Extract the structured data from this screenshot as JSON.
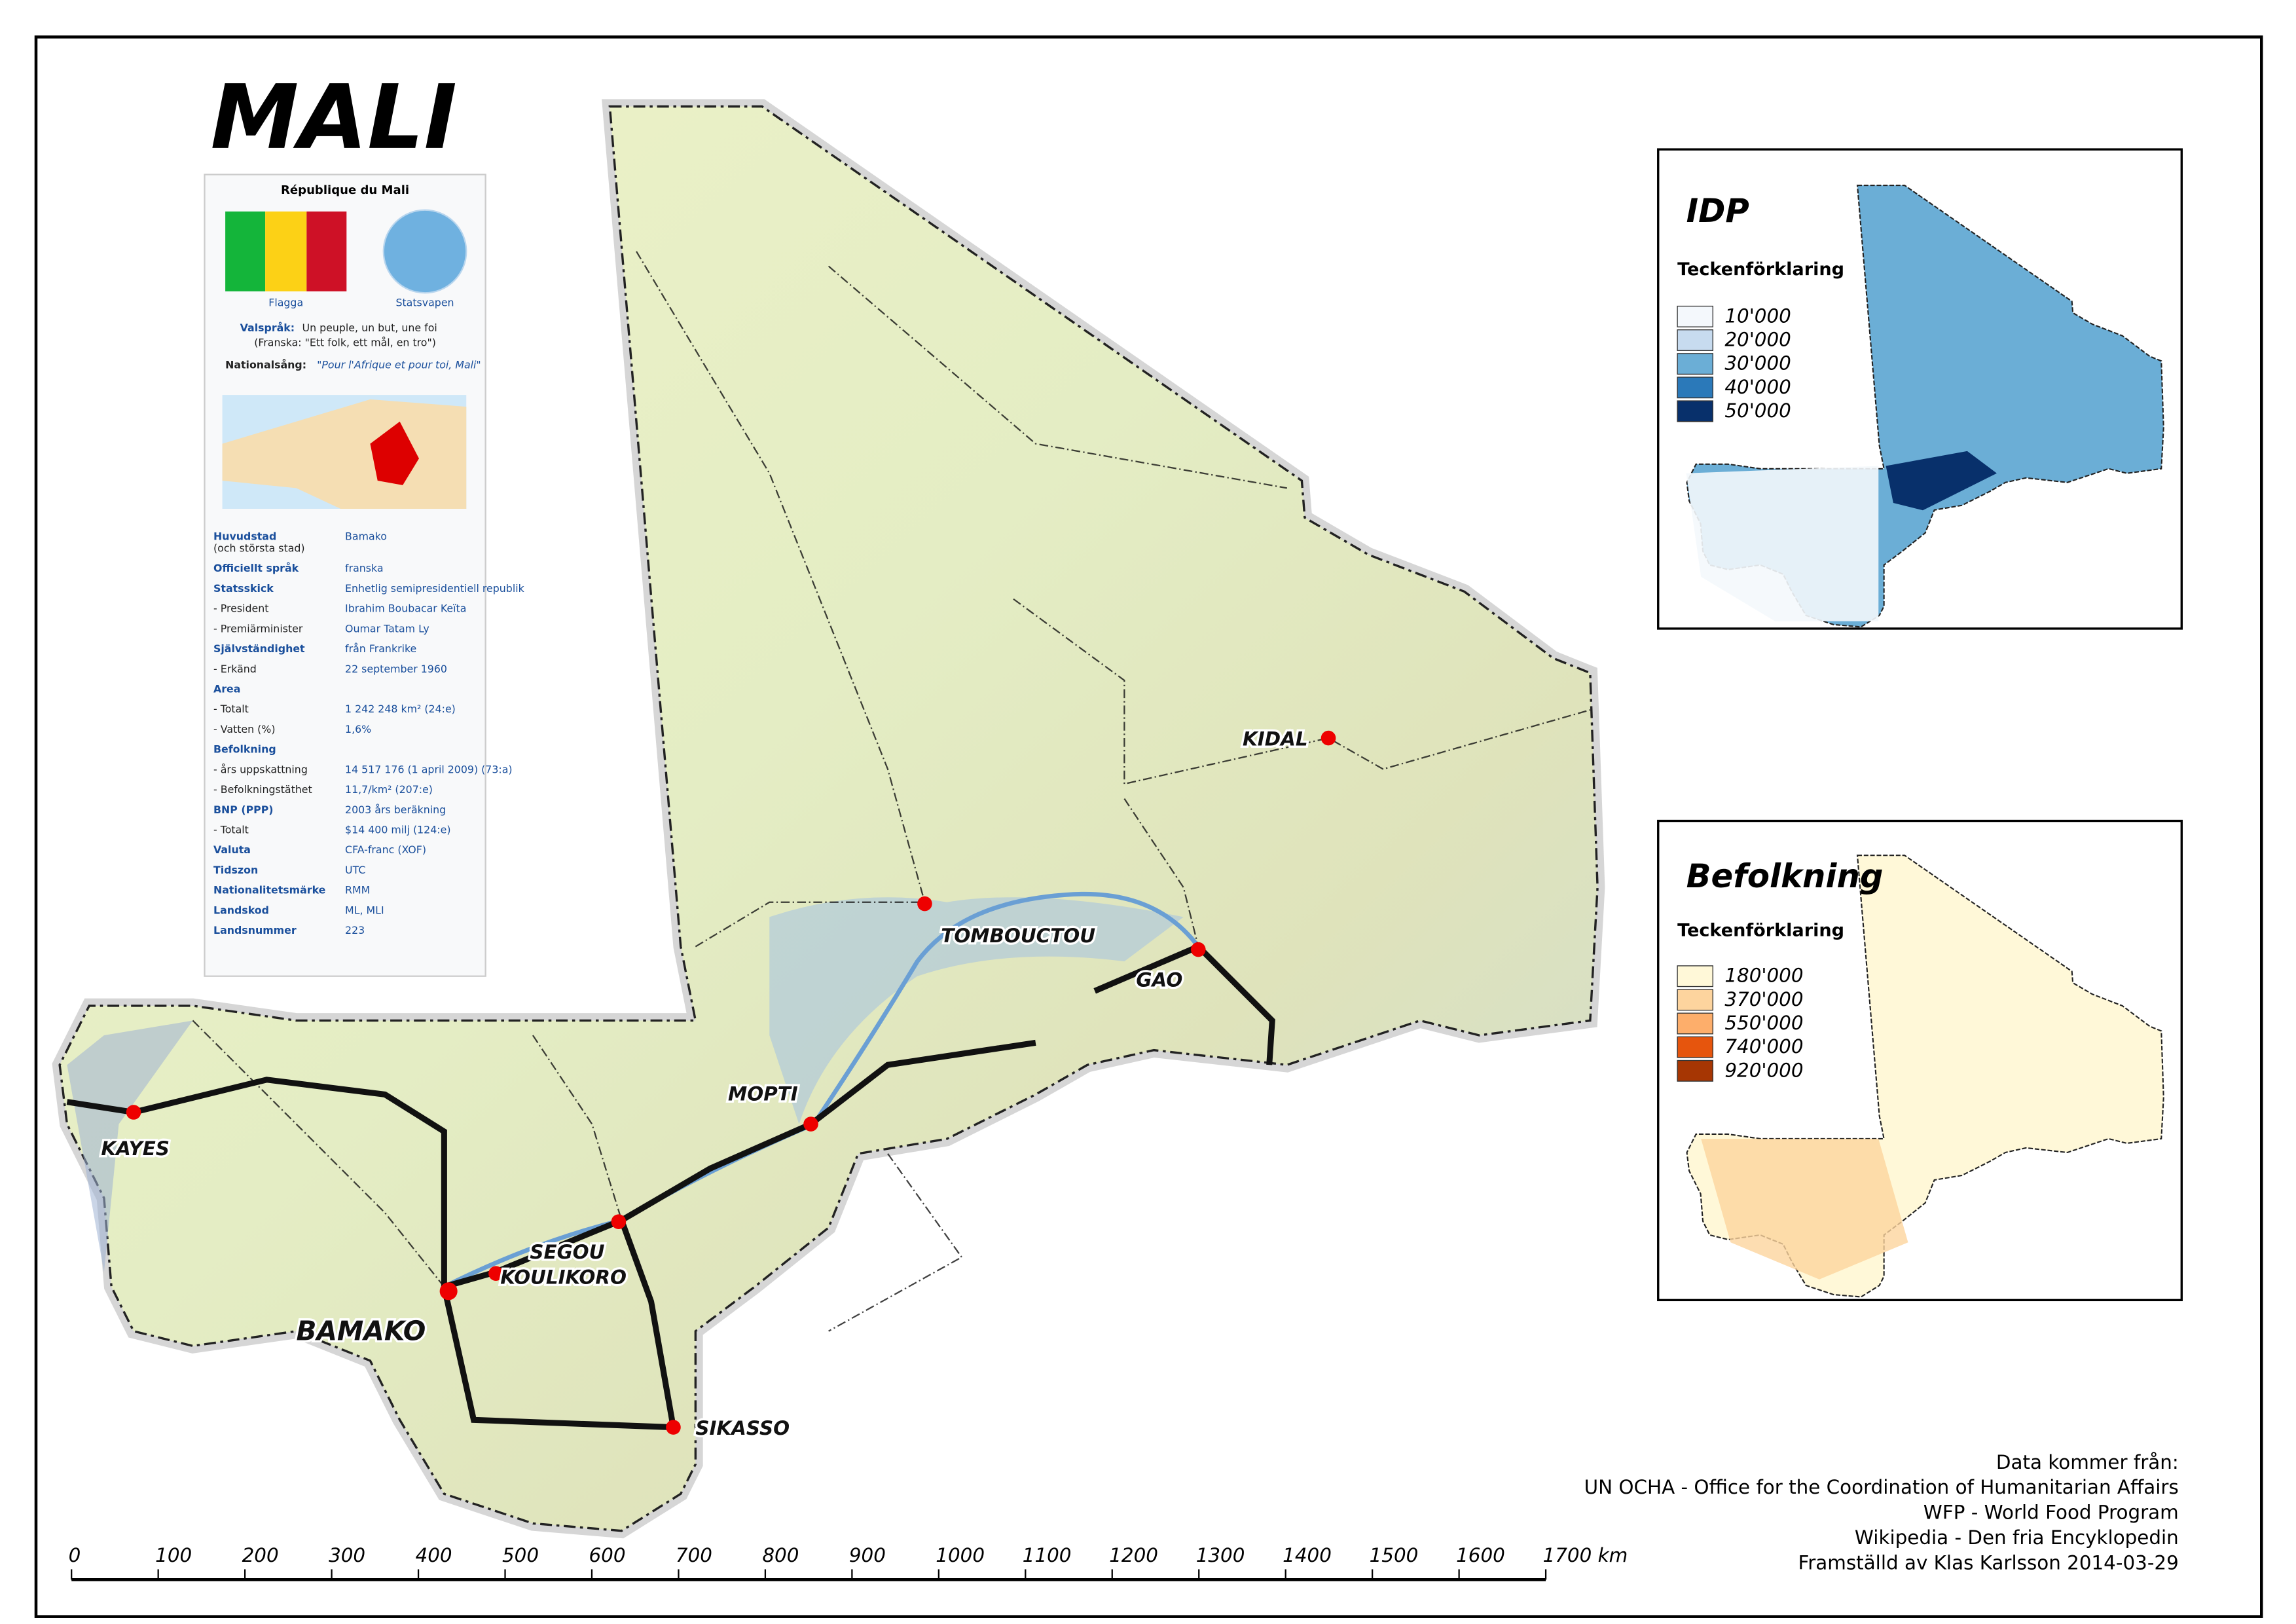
{
  "title": "MALI",
  "infobox": {
    "title": "République du Mali",
    "flag_caption": "Flagga",
    "coat_caption": "Statsvapen",
    "motto_label": "Valspråk:",
    "motto_text": "Un peuple, un but, une foi",
    "motto_translation": "(Franska: \"Ett folk, ett mål, en tro\")",
    "anthem_label": "Nationalsång:",
    "anthem_text": "\"Pour l'Afrique et pour toi, Mali\"",
    "rows": [
      [
        "Huvudstad",
        "Bamako"
      ],
      [
        "(och största stad)",
        ""
      ],
      [
        "Officiellt språk",
        "franska"
      ],
      [
        "Statsskick",
        "Enhetlig semipresidentiell republik"
      ],
      [
        "- President",
        "Ibrahim Boubacar Keïta"
      ],
      [
        "- Premiärminister",
        "Oumar Tatam Ly"
      ],
      [
        "Självständighet",
        "från Frankrike"
      ],
      [
        "- Erkänd",
        "22 september 1960"
      ],
      [
        "Area",
        ""
      ],
      [
        "- Totalt",
        "1 242 248 km² (24:e)"
      ],
      [
        "- Vatten (%)",
        "1,6%"
      ],
      [
        "Befolkning",
        ""
      ],
      [
        "- års uppskattning",
        "14 517 176 (1 april 2009) (73:a)"
      ],
      [
        "- Befolkningstäthet",
        "11,7/km² (207:e)"
      ],
      [
        "BNP (PPP)",
        "2003 års beräkning"
      ],
      [
        "- Totalt",
        "$14 400 milj (124:e)"
      ],
      [
        "Valuta",
        "CFA-franc (XOF)"
      ],
      [
        "Tidszon",
        "UTC"
      ],
      [
        "Nationalitetsmärke",
        "RMM"
      ],
      [
        "Landskod",
        "ML, MLI"
      ],
      [
        "Landsnummer",
        "223"
      ]
    ]
  },
  "cities": [
    "KIDAL",
    "TOMBOUCTOU",
    "GAO",
    "MOPTI",
    "KAYES",
    "SEGOU",
    "KOULIKORO",
    "BAMAKO",
    "SIKASSO"
  ],
  "idp_legend": {
    "title": "IDP",
    "subtitle": "Teckenförklaring",
    "classes": [
      "10'000",
      "20'000",
      "30'000",
      "40'000",
      "50'000"
    ],
    "colors": [
      "#f4f8fc",
      "#c7dbef",
      "#6baed6",
      "#2b79b9",
      "#08306b"
    ]
  },
  "pop_legend": {
    "title": "Befolkning",
    "subtitle": "Teckenförklaring",
    "classes": [
      "180'000",
      "370'000",
      "550'000",
      "740'000",
      "920'000"
    ],
    "colors": [
      "#fff8d8",
      "#fdd49e",
      "#fdae6b",
      "#e6550d",
      "#a63603"
    ]
  },
  "scale_labels": [
    "0",
    "100",
    "200",
    "300",
    "400",
    "500",
    "600",
    "700",
    "800",
    "900",
    "1000",
    "1100",
    "1200",
    "1300",
    "1400",
    "1500",
    "1600",
    "1700 km"
  ],
  "sources": [
    "Data kommer från:",
    "UN OCHA - Office for the Coordination of Humanitarian Affairs",
    "WFP - World Food Program",
    "Wikipedia - Den fria Encyklopedin",
    "Framställd av Klas Karlsson 2014-03-29"
  ]
}
